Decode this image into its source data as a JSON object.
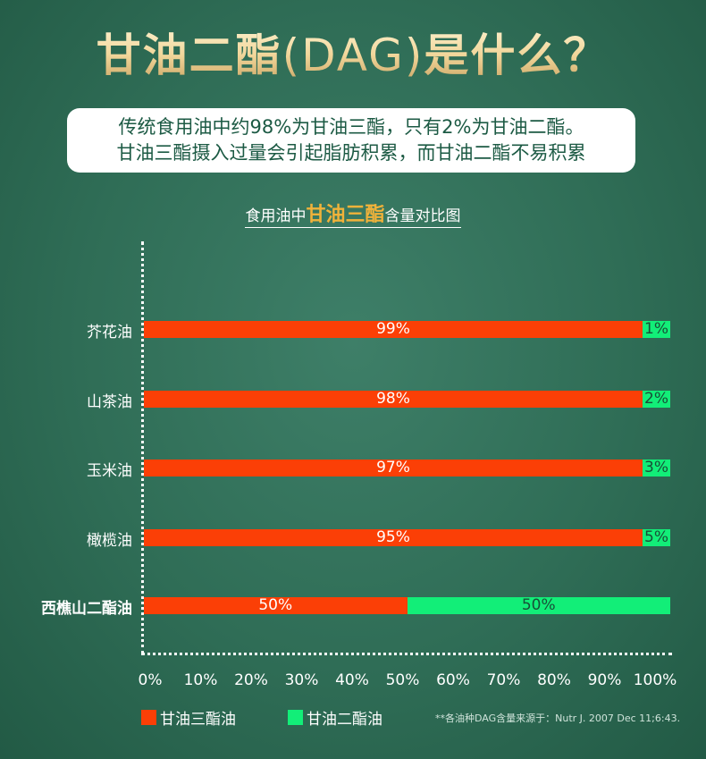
{
  "title": {
    "cn": "甘油二酯",
    "lat": "(DAG)",
    "tail": "是什么？"
  },
  "intro": {
    "line1": "传统食用油中约98%为甘油三酯，只有2%为甘油二酯。",
    "line2": "甘油三酯摄入过量会引起脂肪积累，而甘油二酯不易积累"
  },
  "chart_data": {
    "type": "bar",
    "stacked": true,
    "orientation": "horizontal",
    "title": {
      "pre": "食用油中",
      "highlight": "甘油三酯",
      "post": "含量对比图"
    },
    "categories": [
      "芥花油",
      "山茶油",
      "玉米油",
      "橄榄油",
      "西樵山二酯油"
    ],
    "series": [
      {
        "name": "甘油三酯油",
        "color": "#fb3f06",
        "values": [
          99,
          98,
          97,
          95,
          50
        ],
        "labels": [
          "99%",
          "98%",
          "97%",
          "95%",
          "50%"
        ]
      },
      {
        "name": "甘油二酯油",
        "color": "#12ee78",
        "values": [
          1,
          2,
          3,
          5,
          50
        ],
        "labels": [
          "1%",
          "2%",
          "3%",
          "5%",
          "50%"
        ]
      }
    ],
    "xlim": [
      0,
      100
    ],
    "xticks": [
      "0%",
      "10%",
      "20%",
      "30%",
      "40%",
      "50%",
      "60%",
      "70%",
      "80%",
      "90%",
      "100%"
    ],
    "legend": "bottom-left"
  },
  "note": "**各油种DAG含量来源于：Nutr J. 2007 Dec 11;6:43."
}
